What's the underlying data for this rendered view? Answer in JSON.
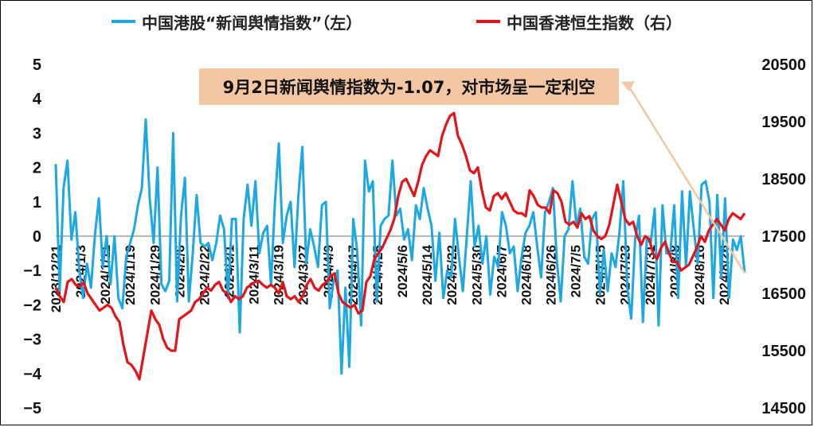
{
  "legend": {
    "series1": "中国港股“新闻舆情指数”（左）",
    "series2": "中国香港恒生指数（右）"
  },
  "annotation": "9月2日新闻舆情指数为-1.07，对市场呈一定利空",
  "colors": {
    "series1": "#1BA8E3",
    "series2": "#E3151B",
    "annotation_bg": "#F4C7A4",
    "arrow": "#F4C7A4"
  },
  "chart_data": {
    "type": "line",
    "y_left": {
      "ticks": [
        "5",
        "4",
        "3",
        "2",
        "1",
        "0",
        "−1",
        "−2",
        "−3",
        "−4",
        "−5"
      ],
      "range": [
        -5,
        5
      ]
    },
    "y_right": {
      "ticks": [
        "20500",
        "19500",
        "18500",
        "17500",
        "16500",
        "15500",
        "14500"
      ],
      "range": [
        14500,
        20500
      ]
    },
    "x_tick_labels": [
      "2023/12/21",
      "2024/1/3",
      "2024/1/11",
      "2024/1/19",
      "2024/1/29",
      "2024/2/6",
      "2024/2/22",
      "2024/3/1",
      "2024/3/11",
      "2024/3/19",
      "2024/3/27",
      "2024/4/9",
      "2024/4/17",
      "2024/4/25",
      "2024/5/6",
      "2024/5/14",
      "2024/5/22",
      "2024/5/30",
      "2024/6/7",
      "2024/6/18",
      "2024/6/26",
      "2024/7/5",
      "2024/7/15",
      "2024/7/23",
      "2024/7/31",
      "2024/8/8",
      "2024/8/16",
      "2024/8/26"
    ],
    "series": [
      {
        "name": "中国港股“新闻舆情指数”（左）",
        "axis": "left",
        "values": [
          2.1,
          -1.6,
          1.4,
          2.2,
          -0.1,
          0.7,
          -1.0,
          -1.8,
          -0.8,
          -1.5,
          0.0,
          1.1,
          -0.9,
          0.0,
          -1.4,
          0.0,
          -1.8,
          -2.1,
          -0.6,
          -0.2,
          0.2,
          0.9,
          1.4,
          3.4,
          1.1,
          -0.2,
          2.0,
          -1.4,
          -1.6,
          -1.3,
          3.0,
          -1.9,
          0.6,
          1.7,
          -1.9,
          -0.5,
          1.2,
          -0.2,
          -0.3,
          -0.2,
          -0.7,
          -0.2,
          0.6,
          0.2,
          -1.8,
          0.5,
          0.5,
          -2.8,
          0.5,
          1.5,
          0.3,
          1.6,
          -0.5,
          0.1,
          0.3,
          -1.4,
          1.0,
          2.7,
          -0.2,
          0.6,
          1.0,
          -0.9,
          1.2,
          2.6,
          -0.8,
          0.2,
          -0.3,
          -0.9,
          0.9,
          1.0,
          -2.1,
          -1.3,
          -1.0,
          -4.0,
          -1.5,
          -3.8,
          0.5,
          -0.4,
          -2.6,
          2.2,
          1.3,
          1.6,
          -1.9,
          0.3,
          0.5,
          0.6,
          2.2,
          0.6,
          0.8,
          -0.1,
          0.2,
          -0.7,
          0.9,
          0.5,
          1.4,
          0.8,
          0.3,
          -1.3,
          0.1,
          -1.8,
          -1.0,
          -1.2,
          0.5,
          -0.6,
          -1.6,
          0.0,
          1.6,
          -0.3,
          0.3,
          -0.8,
          0.0,
          -1.7,
          -0.6,
          -0.9,
          0.7,
          0.3,
          -0.5,
          -0.3,
          -1.6,
          -0.6,
          0.1,
          0.3,
          0.7,
          -0.3,
          -1.2,
          0.7,
          1.0,
          1.4,
          -0.7,
          -1.9,
          0.0,
          0.2,
          1.6,
          0.3,
          0.8,
          -0.6,
          -0.8,
          0.5,
          0.7,
          -1.7,
          -0.4,
          -1.6,
          -0.5,
          -0.9,
          0.1,
          1.6,
          -1.5,
          -2.4,
          -0.1,
          0.6,
          -2.5,
          -0.1,
          -0.2,
          0.8,
          -2.6,
          0.9,
          -0.5,
          -0.5,
          0.9,
          -1.8,
          1.3,
          -0.9,
          1.3,
          0.2,
          -0.8,
          1.5,
          1.6,
          1.0,
          -1.8,
          1.2,
          -1.2,
          1.1,
          -1.8,
          -0.1,
          -0.4,
          0.0,
          -1.07
        ]
      },
      {
        "name": "中国香港恒生指数（右）",
        "axis": "right",
        "values": [
          16600,
          16450,
          16350,
          16700,
          16750,
          16650,
          16620,
          16690,
          16500,
          16400,
          16300,
          16200,
          16250,
          16300,
          16250,
          16100,
          16000,
          15600,
          15300,
          15250,
          15150,
          15000,
          15400,
          15800,
          16200,
          16050,
          15950,
          15700,
          15550,
          15500,
          15500,
          16050,
          16100,
          16150,
          16200,
          16350,
          16400,
          16500,
          16600,
          16550,
          16650,
          16700,
          16550,
          16500,
          16350,
          16450,
          16400,
          16450,
          16600,
          16650,
          16700,
          16720,
          16650,
          16600,
          16650,
          16600,
          16500,
          16700,
          16450,
          16400,
          16450,
          16350,
          16450,
          16650,
          16750,
          16600,
          16550,
          16650,
          16700,
          16800,
          16850,
          16500,
          16350,
          16300,
          16250,
          16300,
          16150,
          16200,
          16700,
          16800,
          17100,
          17200,
          17300,
          17450,
          17600,
          17800,
          18200,
          18450,
          18500,
          18350,
          18200,
          18450,
          18750,
          18900,
          19000,
          18950,
          18900,
          19250,
          19450,
          19600,
          19650,
          19250,
          19100,
          18900,
          18650,
          18600,
          18700,
          18300,
          18000,
          17950,
          18200,
          18250,
          18150,
          18250,
          18100,
          17950,
          17900,
          17900,
          17850,
          18300,
          18200,
          18050,
          18000,
          18000,
          17900,
          18300,
          18250,
          18100,
          17750,
          17700,
          17750,
          17650,
          17900,
          17800,
          17850,
          17600,
          17500,
          17450,
          17500,
          17700,
          18050,
          18400,
          18100,
          17800,
          17700,
          17750,
          17500,
          17350,
          17500,
          17450,
          17200,
          17100,
          17300,
          17400,
          17200,
          17050,
          17050,
          16900,
          16950,
          17000,
          17150,
          17300,
          17500,
          17400,
          17600,
          17700,
          17800,
          17700,
          17600,
          17800,
          17900,
          17850,
          17800,
          17900
        ]
      }
    ]
  }
}
